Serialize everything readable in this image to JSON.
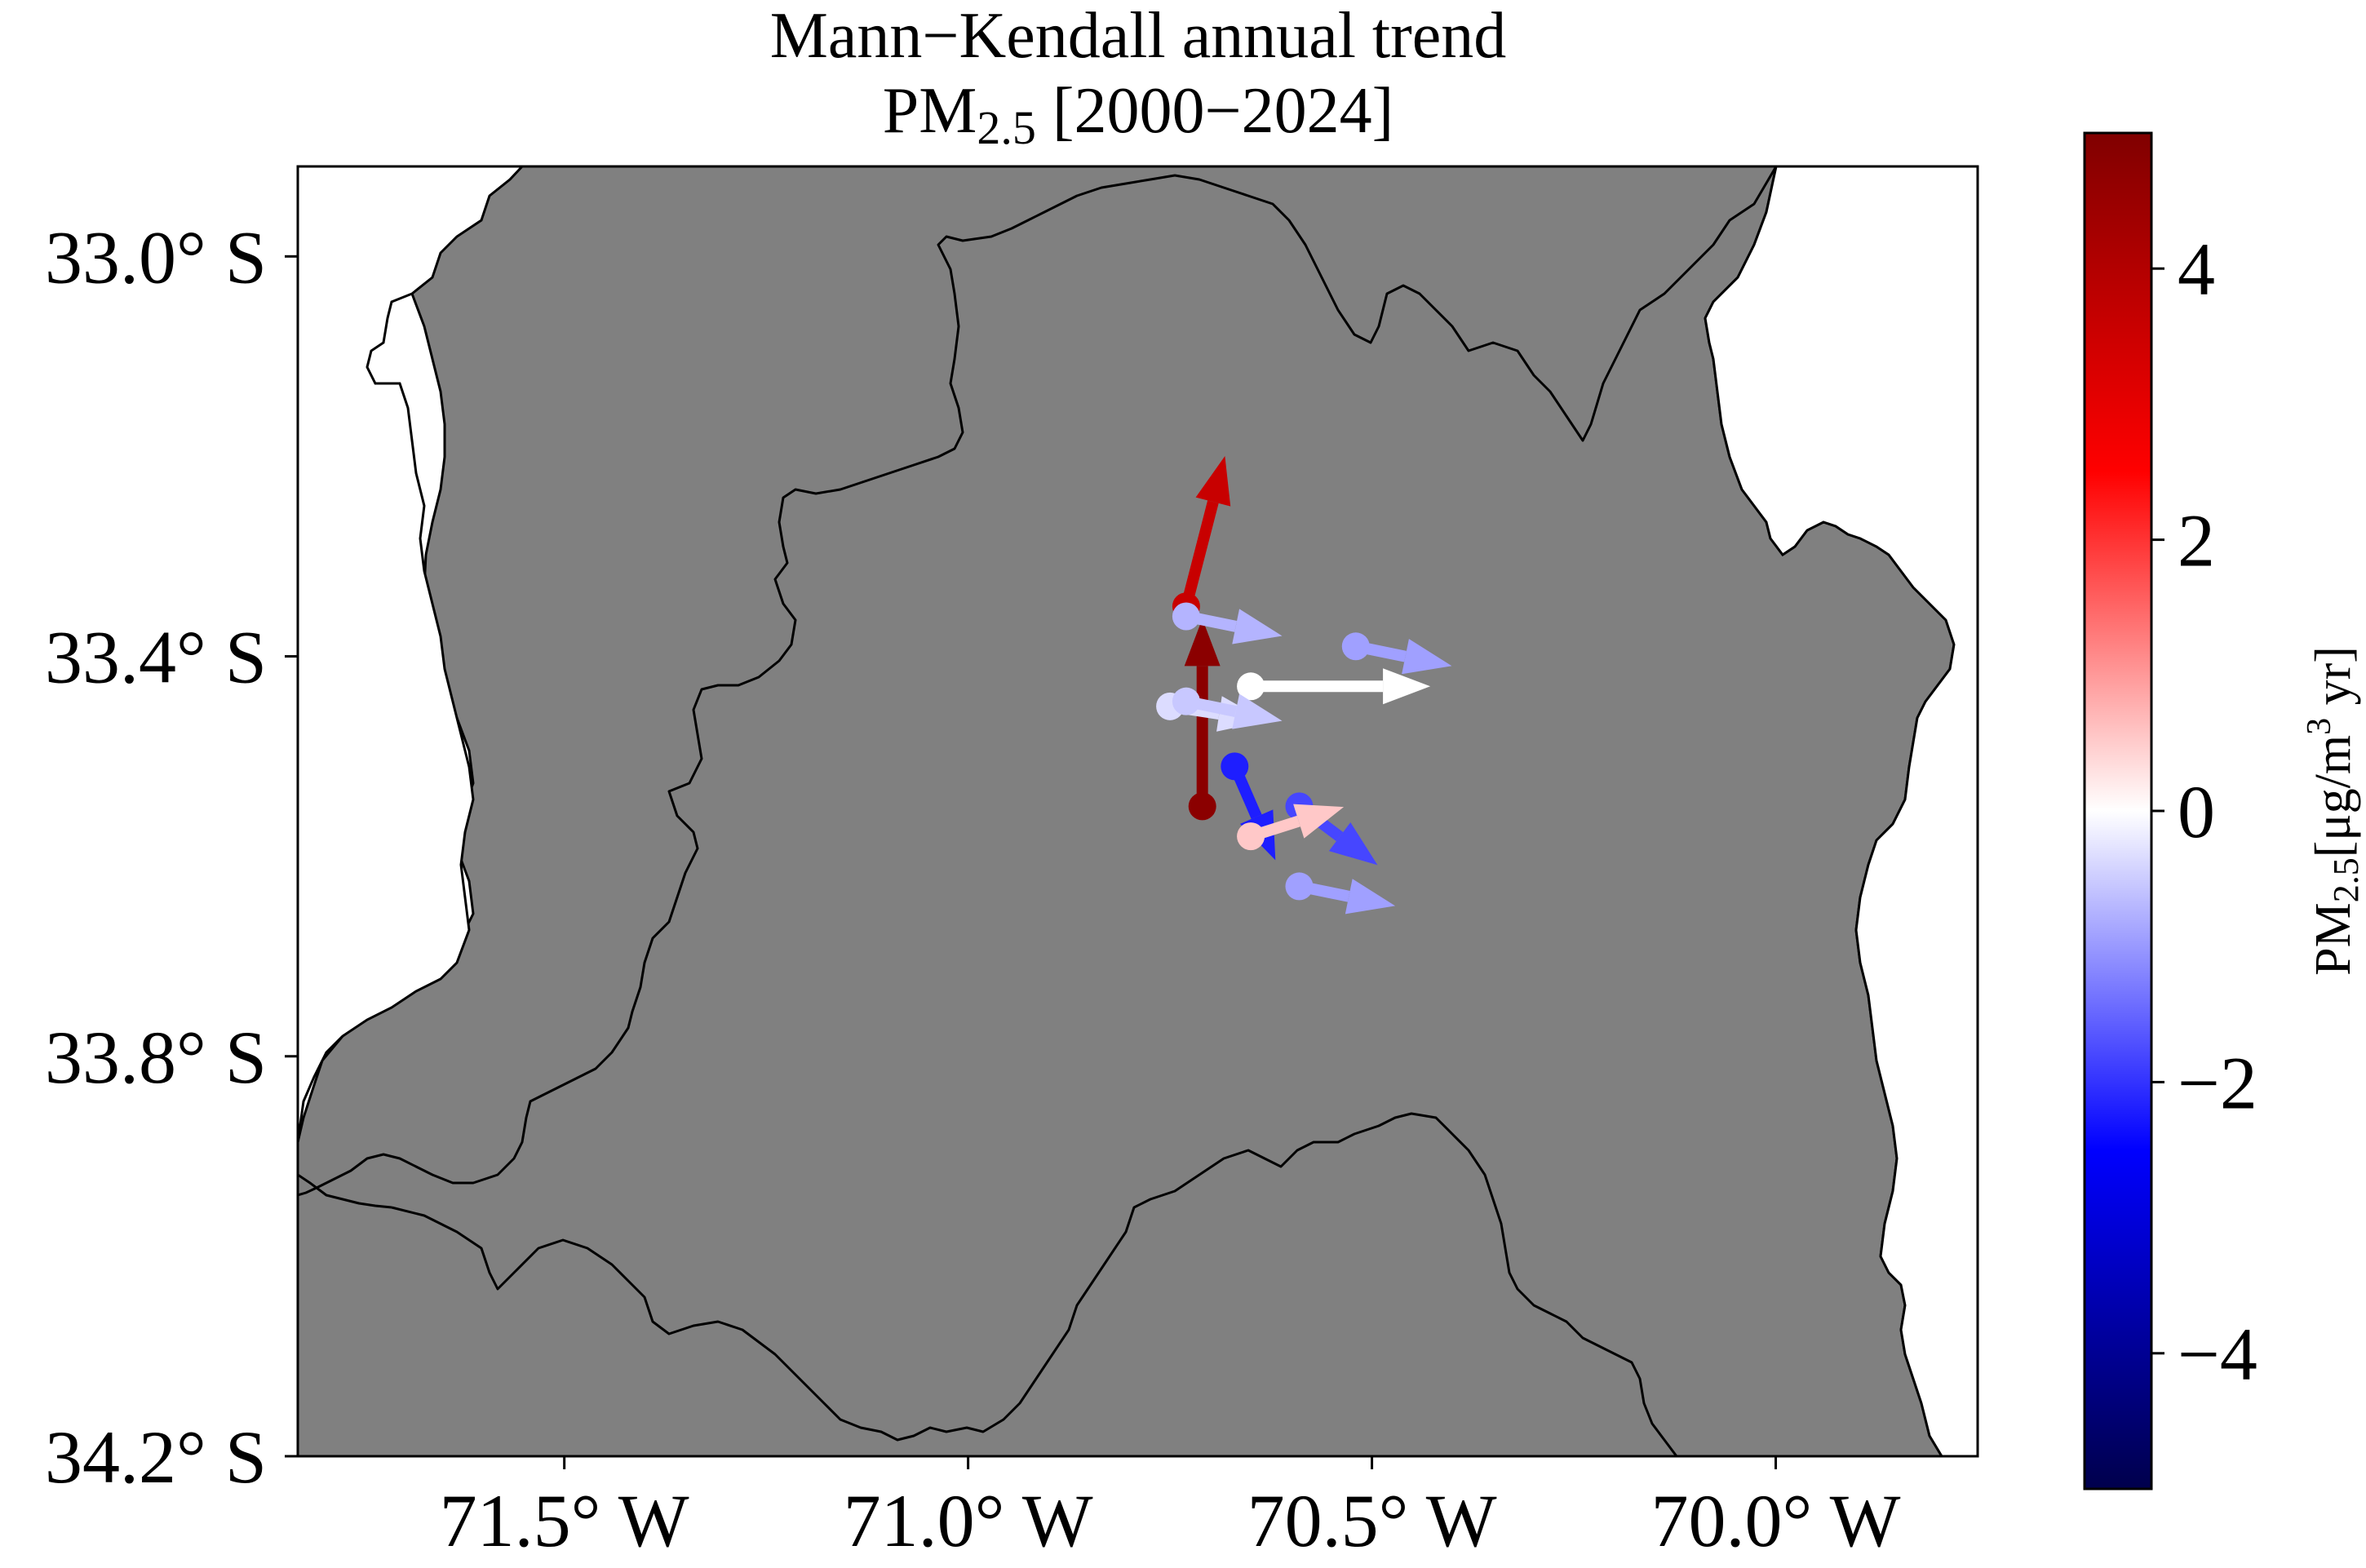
{
  "title": {
    "line1": "Mann−Kendall annual trend",
    "line2_prefix": "PM",
    "line2_sub": "2.5",
    "line2_suffix": " [2000−2024]"
  },
  "axes": {
    "x_ticks": [
      {
        "value": -71.5,
        "label": "71.5° W"
      },
      {
        "value": -71.0,
        "label": "71.0° W"
      },
      {
        "value": -70.5,
        "label": "70.5° W"
      },
      {
        "value": -70.0,
        "label": "70.0° W"
      }
    ],
    "y_ticks": [
      {
        "value": -33.0,
        "label": "33.0° S"
      },
      {
        "value": -33.4,
        "label": "33.4° S"
      },
      {
        "value": -33.8,
        "label": "33.8° S"
      },
      {
        "value": -34.2,
        "label": "34.2° S"
      }
    ],
    "xlim": [
      -71.83,
      -69.75
    ],
    "ylim": [
      -34.2,
      -32.91
    ]
  },
  "colorbar": {
    "colormap": "seismic",
    "range": [
      -5,
      5
    ],
    "ticks": [
      {
        "value": 4,
        "label": "4"
      },
      {
        "value": 2,
        "label": "2"
      },
      {
        "value": 0,
        "label": "0"
      },
      {
        "value": -2,
        "label": "−2"
      },
      {
        "value": -4,
        "label": "−4"
      }
    ],
    "label_prefix": "PM",
    "label_sub": "2.5",
    "label_unit": "[μg/m",
    "label_sup": "3",
    "label_suffix": " yr]",
    "stops": [
      "#00004c",
      "#0000ff",
      "#ffffff",
      "#ff0000",
      "#800000"
    ]
  },
  "colors": {
    "land": "#808080",
    "border": "#000000",
    "ocean": "#ffffff"
  },
  "chart_data": {
    "type": "quiver",
    "units": "μg/m3 yr",
    "stations": [
      {
        "lon": -70.71,
        "lat": -33.55,
        "trend": 4.6,
        "dir_x": 0.0,
        "dir_y": 1.0,
        "color": "#8b0000"
      },
      {
        "lon": -70.73,
        "lat": -33.35,
        "trend": 3.8,
        "dir_x": 0.25,
        "dir_y": 0.97,
        "color": "#c80000"
      },
      {
        "lon": -70.73,
        "lat": -33.36,
        "trend": -0.9,
        "dir_x": 0.98,
        "dir_y": -0.2,
        "color": "#b4b4ff"
      },
      {
        "lon": -70.52,
        "lat": -33.39,
        "trend": -1.1,
        "dir_x": 0.98,
        "dir_y": -0.2,
        "color": "#a0a0ff"
      },
      {
        "lon": -70.65,
        "lat": -33.43,
        "trend": 0.0,
        "dir_x": 1.0,
        "dir_y": 0.0,
        "color": "#ffffff"
      },
      {
        "lon": -70.75,
        "lat": -33.45,
        "trend": -0.4,
        "dir_x": 0.98,
        "dir_y": -0.15,
        "color": "#dcdcff"
      },
      {
        "lon": -70.73,
        "lat": -33.445,
        "trend": -0.7,
        "dir_x": 0.98,
        "dir_y": -0.2,
        "color": "#c8c8ff"
      },
      {
        "lon": -70.67,
        "lat": -33.51,
        "trend": -2.5,
        "dir_x": 0.4,
        "dir_y": -0.92,
        "color": "#1e1eff"
      },
      {
        "lon": -70.59,
        "lat": -33.55,
        "trend": -1.9,
        "dir_x": 0.8,
        "dir_y": -0.6,
        "color": "#4646ff"
      },
      {
        "lon": -70.65,
        "lat": -33.58,
        "trend": 0.5,
        "dir_x": 0.95,
        "dir_y": 0.3,
        "color": "#ffc8c8"
      },
      {
        "lon": -70.59,
        "lat": -33.63,
        "trend": -1.0,
        "dir_x": 0.98,
        "dir_y": -0.2,
        "color": "#a0a0ff"
      }
    ]
  }
}
